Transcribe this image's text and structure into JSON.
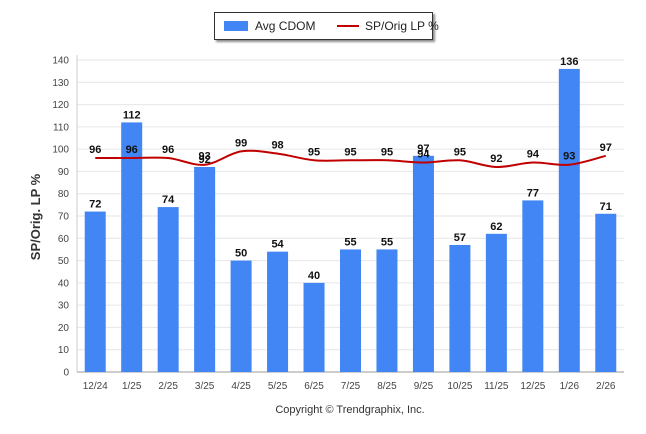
{
  "chart_data": {
    "type": "bar+line",
    "categories": [
      "12/24",
      "1/25",
      "2/25",
      "3/25",
      "4/25",
      "5/25",
      "6/25",
      "7/25",
      "8/25",
      "9/25",
      "10/25",
      "11/25",
      "12/25",
      "1/26",
      "2/26"
    ],
    "series": [
      {
        "name": "Avg CDOM",
        "type": "bar",
        "color": "#4285f4",
        "values": [
          72,
          112,
          74,
          92,
          50,
          54,
          40,
          55,
          55,
          97,
          57,
          62,
          77,
          136,
          71
        ]
      },
      {
        "name": "SP/Orig LP %",
        "type": "line",
        "color": "#c00000",
        "values": [
          96,
          96,
          96,
          93,
          99,
          98,
          95,
          95,
          95,
          94,
          95,
          92,
          94,
          93,
          97
        ]
      }
    ],
    "ylabel": "SP/Orig. LP %",
    "ylim": [
      0,
      140
    ],
    "yticks": [
      0,
      10,
      20,
      30,
      40,
      50,
      60,
      70,
      80,
      90,
      100,
      110,
      120,
      130,
      140
    ],
    "grid": true,
    "legend_position": "top-center",
    "credit": "Copyright © Trendgraphix, Inc."
  }
}
